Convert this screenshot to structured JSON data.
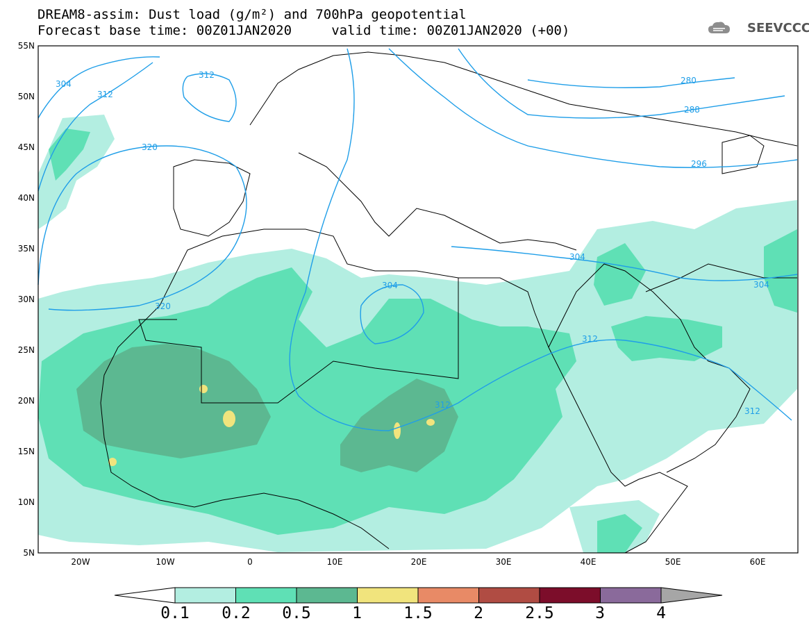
{
  "header": {
    "title_line1": "DREAM8-assim: Dust load (g/m²) and 700hPa geopotential",
    "title_line2": "Forecast base time: 00Z01JAN2020     valid time: 00Z01JAN2020 (+00)",
    "logo": "SEEVCCC"
  },
  "axes": {
    "lat_labels": [
      "55N",
      "50N",
      "45N",
      "40N",
      "35N",
      "30N",
      "25N",
      "20N",
      "15N",
      "10N",
      "5N"
    ],
    "lon_labels": [
      "20W",
      "10W",
      "0",
      "10E",
      "20E",
      "30E",
      "40E",
      "50E",
      "60E"
    ]
  },
  "contours": {
    "labels": [
      "304",
      "312",
      "312",
      "320",
      "320",
      "304",
      "312",
      "312",
      "304",
      "312",
      "280",
      "288",
      "296",
      "304"
    ]
  },
  "colorbar": {
    "labels": [
      "0.1",
      "0.2",
      "0.5",
      "1",
      "1.5",
      "2",
      "2.5",
      "3",
      "4"
    ],
    "colors": [
      "#ffffff",
      "#b3eee1",
      "#5fe0b5",
      "#5cb891",
      "#f1e47d",
      "#e88a66",
      "#b04c43",
      "#7c0d2a",
      "#8a6a9b",
      "#a6a6a6"
    ]
  },
  "icons": {
    "logo_icon": "cloud-icon"
  }
}
